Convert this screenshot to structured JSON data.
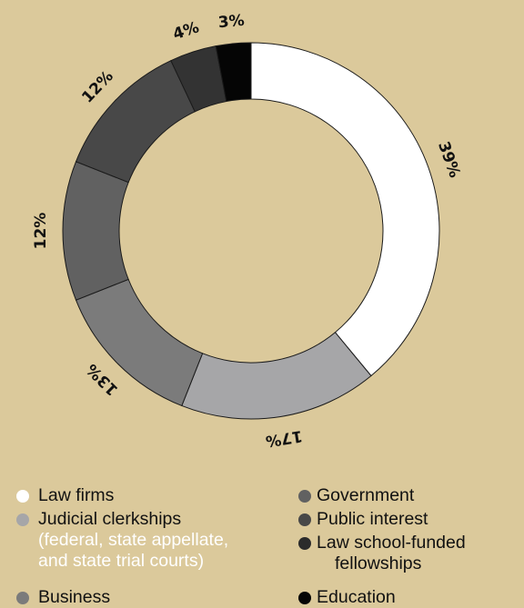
{
  "chart_data": {
    "type": "donut",
    "slices": [
      {
        "label": "Law firms",
        "value": 39,
        "text": "39%",
        "color": "#ffffff"
      },
      {
        "label": "Judicial clerkships",
        "value": 17,
        "text": "17%",
        "color": "#a6a6a8"
      },
      {
        "label": "Business",
        "value": 13,
        "text": "13%",
        "color": "#7b7b7b"
      },
      {
        "label": "Government",
        "value": 12,
        "text": "12%",
        "color": "#616161"
      },
      {
        "label": "Public interest",
        "value": 12,
        "text": "12%",
        "color": "#484848"
      },
      {
        "label": "Law school-funded fellowships",
        "value": 4,
        "text": "4%",
        "color": "#333333"
      },
      {
        "label": "Education",
        "value": 3,
        "text": "3%",
        "color": "#050505"
      }
    ]
  },
  "legend": {
    "law_firms": "Law firms",
    "judicial": "Judicial clerkships",
    "judicial_note_1": "(federal, state appellate,",
    "judicial_note_2": "and state trial courts)",
    "business": "Business",
    "government": "Government",
    "public_interest": "Public interest",
    "fellowships_1": "Law school-funded",
    "fellowships_2": "fellowships",
    "education": "Education"
  }
}
